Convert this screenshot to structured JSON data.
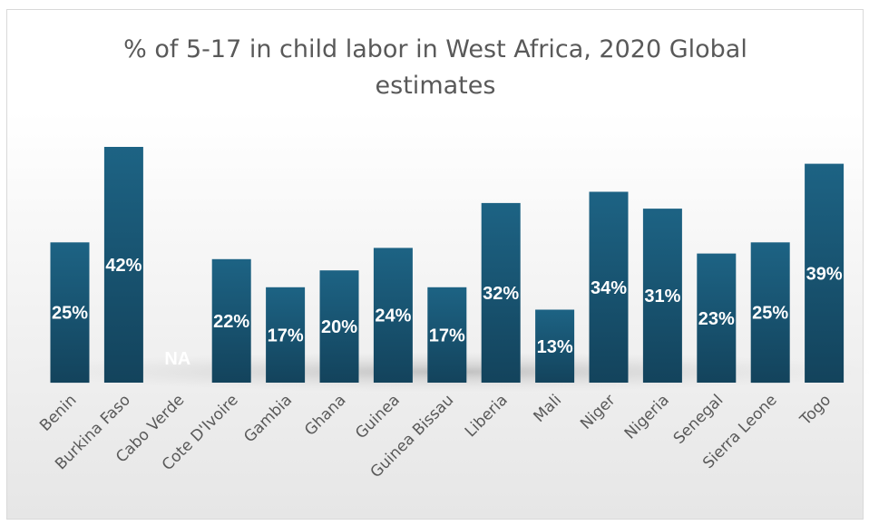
{
  "chart_data": {
    "type": "bar",
    "title_lines": [
      "% of 5-17 in child labor in West Africa, 2020 Global",
      "estimates"
    ],
    "categories": [
      "Benin",
      "Burkina Faso",
      "Cabo Verde",
      "Cote D'Ivoire",
      "Gambia",
      "Ghana",
      "Guinea",
      "Guinea Bissau",
      "Liberia",
      "Mali",
      "Niger",
      "Nigeria",
      "Senegal",
      "Sierra Leone",
      "Togo"
    ],
    "values": [
      25,
      42,
      null,
      22,
      17,
      20,
      24,
      17,
      32,
      13,
      34,
      31,
      23,
      25,
      39
    ],
    "data_labels": [
      "25%",
      "42%",
      "NA",
      "22%",
      "17%",
      "20%",
      "24%",
      "17%",
      "32%",
      "13%",
      "34%",
      "31%",
      "23%",
      "25%",
      "39%"
    ],
    "ylim": [
      0,
      45
    ],
    "grid": false,
    "legend": "none",
    "bar_color_top": "#1d6384",
    "bar_color_bottom": "#13435c",
    "na_label_color": "#ffffff"
  }
}
